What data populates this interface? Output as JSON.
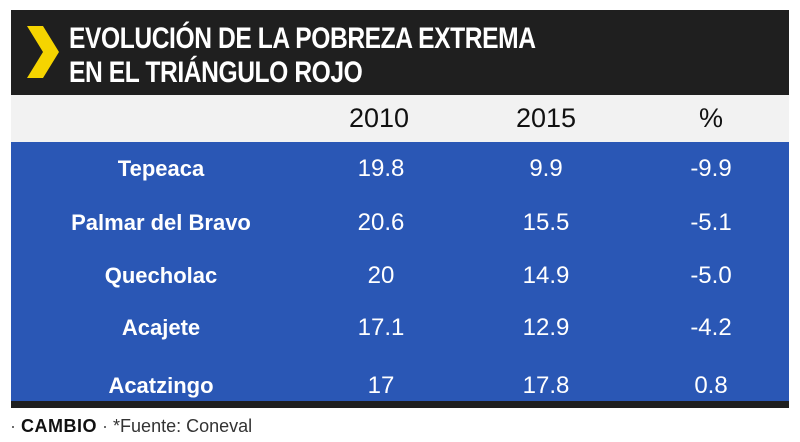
{
  "title_lines": [
    "EVOLUCIÓN DE LA POBREZA EXTREMA",
    "EN EL TRIÁNGULO ROJO"
  ],
  "colors": {
    "dark": "#1f1f1f",
    "accent": "#f5d400",
    "table_blue": "#2a57b5",
    "header_bg": "#f2f2f2"
  },
  "chart_data": {
    "type": "table",
    "columns": [
      "",
      "2010",
      "2015",
      "%"
    ],
    "rows": [
      {
        "name": "Tepeaca",
        "v2010": "19.8",
        "v2015": "9.9",
        "pct": "-9.9"
      },
      {
        "name": "Palmar del Bravo",
        "v2010": "20.6",
        "v2015": "15.5",
        "pct": "-5.1"
      },
      {
        "name": "Quecholac",
        "v2010": "20",
        "v2015": "14.9",
        "pct": "-5.0"
      },
      {
        "name": "Acajete",
        "v2010": "17.1",
        "v2015": "12.9",
        "pct": "-4.2"
      },
      {
        "name": "Acatzingo",
        "v2010": "17",
        "v2015": "17.8",
        "pct": "0.8"
      }
    ]
  },
  "footer": {
    "logo": "CAMBIO",
    "source": "*Fuente: Coneval",
    "separator": "·"
  }
}
